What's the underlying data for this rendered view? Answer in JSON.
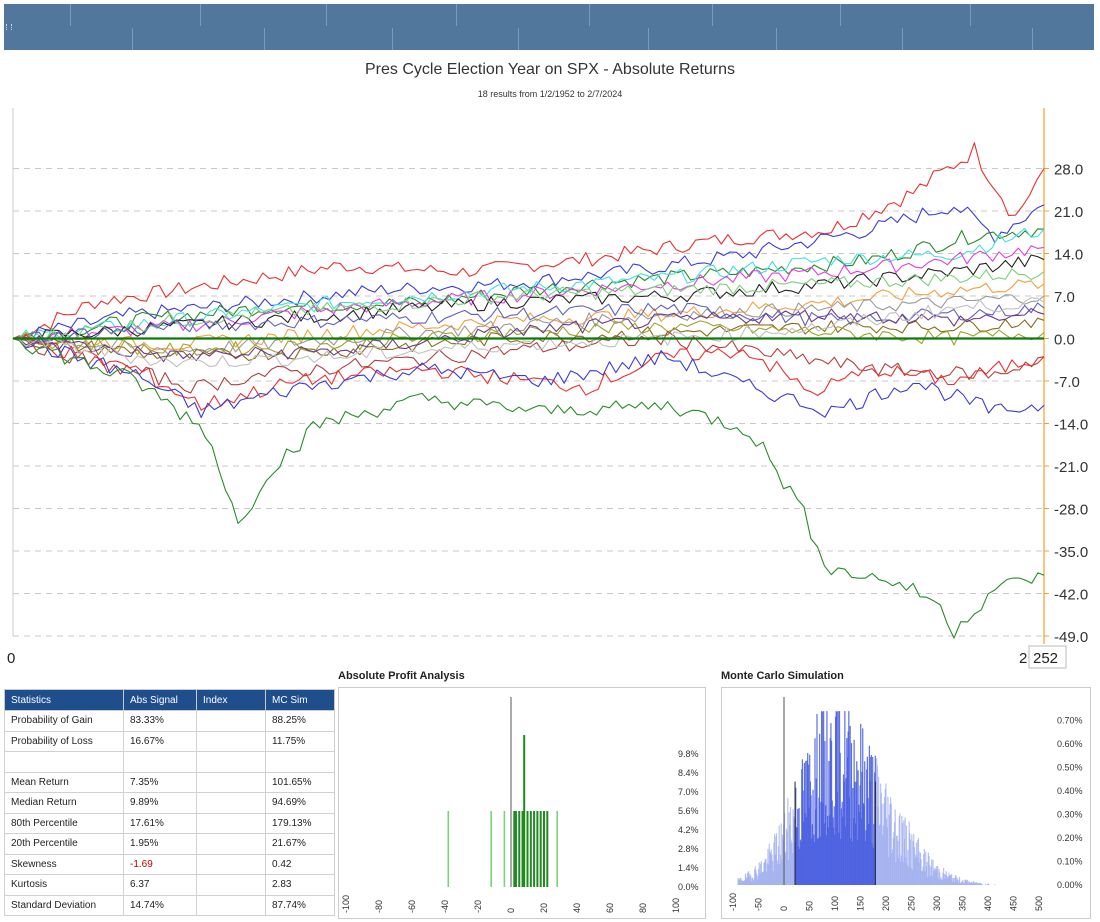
{
  "header": {
    "title": "Pres Cycle Election Year on SPX - Absolute Returns",
    "subtitle": "18 results from 1/2/1952 to 2/7/2024"
  },
  "colors": {
    "topbar": "#52779c",
    "zero_line": "#0a7a0a",
    "right_axis": "#f0a030",
    "table_header": "#1f4e8c",
    "negative_value": "#c00000",
    "profit_bars": "#2a9a2a",
    "mc_bars": "#4466dd"
  },
  "chart_data": [
    {
      "type": "line",
      "title": "Pres Cycle Election Year on SPX - Absolute Returns",
      "subtitle": "18 results from 1/2/1952 to 2/7/2024",
      "x_range": [
        0,
        252
      ],
      "x_tick_labels": [
        "0",
        "252"
      ],
      "x_label_left": "0",
      "x_label_right_prefix": "2",
      "x_label_right_box": "252",
      "ylim": [
        -49,
        35
      ],
      "y_tick_labels": [
        "28.0",
        "21.0",
        "14.0",
        "7.0",
        "0.0",
        "-7.0",
        "-14.0",
        "-21.0",
        "-28.0",
        "-35.0",
        "-42.0",
        "-49.0"
      ],
      "y_ticks": [
        28,
        21,
        14,
        7,
        0,
        -7,
        -14,
        -21,
        -28,
        -35,
        -42,
        -49
      ],
      "grid": true,
      "series": [
        {
          "color": "#e83030",
          "points": [
            [
              0,
              0
            ],
            [
              20,
              6
            ],
            [
              50,
              9
            ],
            [
              80,
              12
            ],
            [
              110,
              11
            ],
            [
              140,
              13
            ],
            [
              170,
              16
            ],
            [
              200,
              18
            ],
            [
              220,
              24
            ],
            [
              235,
              31
            ],
            [
              245,
              20
            ],
            [
              252,
              28
            ]
          ]
        },
        {
          "color": "#3b3bd6",
          "points": [
            [
              0,
              0
            ],
            [
              30,
              4
            ],
            [
              60,
              6
            ],
            [
              90,
              8
            ],
            [
              120,
              9
            ],
            [
              150,
              11
            ],
            [
              180,
              14
            ],
            [
              210,
              18
            ],
            [
              230,
              22
            ],
            [
              240,
              17
            ],
            [
              252,
              22
            ]
          ]
        },
        {
          "color": "#2a8a2a",
          "points": [
            [
              0,
              0
            ],
            [
              30,
              3
            ],
            [
              60,
              5
            ],
            [
              100,
              6
            ],
            [
              140,
              9
            ],
            [
              180,
              11
            ],
            [
              210,
              13
            ],
            [
              235,
              17
            ],
            [
              252,
              18
            ]
          ]
        },
        {
          "color": "#40e0e0",
          "points": [
            [
              0,
              0
            ],
            [
              40,
              3
            ],
            [
              80,
              6
            ],
            [
              120,
              8
            ],
            [
              160,
              10
            ],
            [
              200,
              13
            ],
            [
              230,
              14
            ],
            [
              252,
              18
            ]
          ]
        },
        {
          "color": "#e040e0",
          "points": [
            [
              0,
              0
            ],
            [
              40,
              2
            ],
            [
              80,
              5
            ],
            [
              120,
              7
            ],
            [
              160,
              9
            ],
            [
              200,
              11
            ],
            [
              230,
              13
            ],
            [
              252,
              15
            ]
          ]
        },
        {
          "color": "#222222",
          "points": [
            [
              0,
              0
            ],
            [
              40,
              2
            ],
            [
              80,
              4
            ],
            [
              120,
              6
            ],
            [
              160,
              7
            ],
            [
              200,
              9
            ],
            [
              230,
              11
            ],
            [
              252,
              13
            ]
          ]
        },
        {
          "color": "#7ccf7c",
          "points": [
            [
              0,
              0
            ],
            [
              40,
              3
            ],
            [
              80,
              5
            ],
            [
              120,
              7
            ],
            [
              160,
              8
            ],
            [
              200,
              9
            ],
            [
              230,
              10
            ],
            [
              252,
              11
            ]
          ]
        },
        {
          "color": "#f0a040",
          "points": [
            [
              0,
              0
            ],
            [
              40,
              -1
            ],
            [
              80,
              1
            ],
            [
              120,
              3
            ],
            [
              160,
              4
            ],
            [
              200,
              6
            ],
            [
              230,
              8
            ],
            [
              252,
              9
            ]
          ]
        },
        {
          "color": "#999999",
          "points": [
            [
              0,
              0
            ],
            [
              40,
              -2
            ],
            [
              80,
              0
            ],
            [
              120,
              2
            ],
            [
              160,
              4
            ],
            [
              200,
              5
            ],
            [
              230,
              6
            ],
            [
              252,
              7
            ]
          ]
        },
        {
          "color": "#6060c0",
          "points": [
            [
              0,
              0
            ],
            [
              40,
              2
            ],
            [
              80,
              3
            ],
            [
              120,
              4
            ],
            [
              160,
              5
            ],
            [
              200,
              3
            ],
            [
              230,
              4
            ],
            [
              252,
              5
            ]
          ]
        },
        {
          "color": "#8a6a20",
          "points": [
            [
              0,
              0
            ],
            [
              40,
              -3
            ],
            [
              80,
              -2
            ],
            [
              120,
              0
            ],
            [
              160,
              1
            ],
            [
              200,
              2
            ],
            [
              230,
              2
            ],
            [
              252,
              3
            ]
          ]
        },
        {
          "color": "#a0a030",
          "points": [
            [
              0,
              0
            ],
            [
              40,
              -2
            ],
            [
              80,
              -1
            ],
            [
              120,
              1
            ],
            [
              160,
              2
            ],
            [
              200,
              1
            ],
            [
              230,
              0
            ],
            [
              252,
              1
            ]
          ]
        },
        {
          "color": "#b04040",
          "points": [
            [
              0,
              0
            ],
            [
              20,
              -4
            ],
            [
              45,
              -8
            ],
            [
              60,
              -6
            ],
            [
              90,
              -4
            ],
            [
              120,
              -2
            ],
            [
              160,
              0
            ],
            [
              190,
              -3
            ],
            [
              210,
              -5
            ],
            [
              240,
              -6
            ],
            [
              252,
              -3
            ]
          ]
        },
        {
          "color": "#e83030",
          "points": [
            [
              0,
              0
            ],
            [
              30,
              -5
            ],
            [
              46,
              -11
            ],
            [
              70,
              -7
            ],
            [
              100,
              -5
            ],
            [
              140,
              -8
            ],
            [
              160,
              -3
            ],
            [
              180,
              -2
            ],
            [
              195,
              -9
            ],
            [
              210,
              -5
            ],
            [
              230,
              -7
            ],
            [
              252,
              -3
            ]
          ]
        },
        {
          "color": "#3b3bd6",
          "points": [
            [
              0,
              0
            ],
            [
              30,
              -6
            ],
            [
              46,
              -12
            ],
            [
              70,
              -8
            ],
            [
              100,
              -5
            ],
            [
              130,
              -7
            ],
            [
              160,
              -3
            ],
            [
              180,
              -8
            ],
            [
              200,
              -12
            ],
            [
              220,
              -7
            ],
            [
              240,
              -12
            ],
            [
              252,
              -11
            ]
          ]
        },
        {
          "color": "#2a8a2a",
          "points": [
            [
              0,
              0
            ],
            [
              30,
              -7
            ],
            [
              47,
              -15
            ],
            [
              52,
              -24
            ],
            [
              55,
              -31
            ],
            [
              62,
              -22
            ],
            [
              75,
              -14
            ],
            [
              100,
              -10
            ],
            [
              130,
              -12
            ],
            [
              160,
              -11
            ],
            [
              180,
              -15
            ],
            [
              190,
              -25
            ],
            [
              200,
              -38
            ],
            [
              215,
              -40
            ],
            [
              225,
              -43
            ],
            [
              230,
              -48
            ],
            [
              240,
              -41
            ],
            [
              252,
              -39
            ]
          ]
        },
        {
          "color": "#6a3a8a",
          "points": [
            [
              0,
              0
            ],
            [
              40,
              -3
            ],
            [
              80,
              -2
            ],
            [
              120,
              1
            ],
            [
              160,
              3
            ],
            [
              200,
              4
            ],
            [
              230,
              3
            ],
            [
              252,
              4
            ]
          ]
        },
        {
          "color": "#c0c0c0",
          "points": [
            [
              0,
              0
            ],
            [
              40,
              -4
            ],
            [
              80,
              -3
            ],
            [
              120,
              -1
            ],
            [
              160,
              0
            ],
            [
              200,
              2
            ],
            [
              230,
              5
            ],
            [
              252,
              6
            ]
          ]
        }
      ]
    },
    {
      "type": "bar",
      "title": "Absolute Profit Analysis",
      "xlim": [
        -100,
        100
      ],
      "x_tick_labels": [
        "-100",
        "-80",
        "-60",
        "-40",
        "-20",
        "0",
        "20",
        "40",
        "60",
        "80",
        "100"
      ],
      "ylim": [
        0,
        14
      ],
      "y_tick_labels": [
        "9.8%",
        "8.4%",
        "7.0%",
        "5.6%",
        "4.2%",
        "2.8%",
        "1.4%",
        "0.0%"
      ],
      "bars": [
        {
          "x": -38,
          "value": 5.6
        },
        {
          "x": -12,
          "value": 5.6
        },
        {
          "x": -4,
          "value": 5.6
        },
        {
          "x": 2,
          "value": 5.6
        },
        {
          "x": 3,
          "value": 5.6
        },
        {
          "x": 5,
          "value": 5.6
        },
        {
          "x": 7,
          "value": 5.6
        },
        {
          "x": 8,
          "value": 11.2
        },
        {
          "x": 10,
          "value": 5.6
        },
        {
          "x": 12,
          "value": 5.6
        },
        {
          "x": 14,
          "value": 5.6
        },
        {
          "x": 16,
          "value": 5.6
        },
        {
          "x": 18,
          "value": 5.6
        },
        {
          "x": 20,
          "value": 5.6
        },
        {
          "x": 22,
          "value": 5.6
        },
        {
          "x": 28,
          "value": 5.6
        }
      ]
    },
    {
      "type": "bar",
      "title": "Monte Carlo Simulation",
      "xlim": [
        -100,
        500
      ],
      "x_tick_labels": [
        "-100",
        "-50",
        "0",
        "50",
        "100",
        "150",
        "200",
        "250",
        "300",
        "350",
        "400",
        "450",
        "500"
      ],
      "ylim": [
        0,
        0.8
      ],
      "y_tick_labels": [
        "0.70%",
        "0.60%",
        "0.50%",
        "0.40%",
        "0.30%",
        "0.20%",
        "0.10%",
        "0.00%"
      ],
      "percentile_markers": [
        21.67,
        179.13
      ],
      "distribution": {
        "mean": 101.65,
        "sd": 87.74,
        "peak": 0.55
      }
    }
  ],
  "statistics": {
    "headers": [
      "Statistics",
      "Abs Signal",
      "Index",
      "MC Sim"
    ],
    "rows": [
      [
        "Probability of Gain",
        "83.33%",
        "",
        "88.25%"
      ],
      [
        "Probability of Loss",
        "16.67%",
        "",
        "11.75%"
      ],
      [
        "",
        "",
        "",
        ""
      ],
      [
        "Mean Return",
        "7.35%",
        "",
        "101.65%"
      ],
      [
        "Median Return",
        "9.89%",
        "",
        "94.69%"
      ],
      [
        "80th Percentile",
        "17.61%",
        "",
        "179.13%"
      ],
      [
        "20th Percentile",
        "1.95%",
        "",
        "21.67%"
      ],
      [
        "Skewness",
        "-1.69",
        "",
        "0.42"
      ],
      [
        "Kurtosis",
        "6.37",
        "",
        "2.83"
      ],
      [
        "Standard Deviation",
        "14.74%",
        "",
        "87.74%"
      ]
    ]
  }
}
